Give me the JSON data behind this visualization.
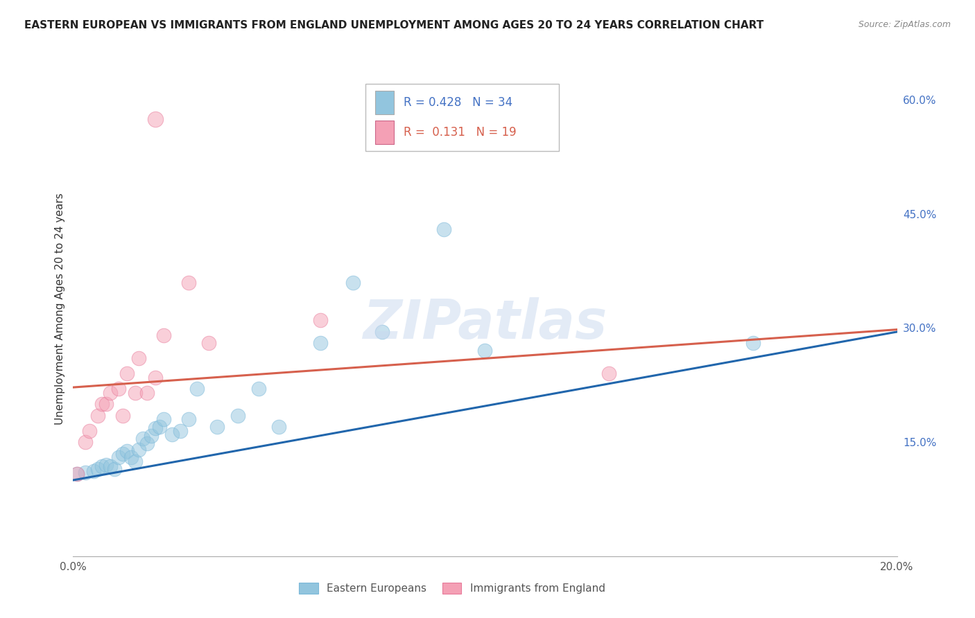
{
  "title": "EASTERN EUROPEAN VS IMMIGRANTS FROM ENGLAND UNEMPLOYMENT AMONG AGES 20 TO 24 YEARS CORRELATION CHART",
  "source": "Source: ZipAtlas.com",
  "ylabel": "Unemployment Among Ages 20 to 24 years",
  "xlim": [
    0.0,
    0.2
  ],
  "ylim": [
    0.0,
    0.65
  ],
  "xtick_positions": [
    0.0,
    0.04,
    0.08,
    0.12,
    0.16,
    0.2
  ],
  "xticklabels": [
    "0.0%",
    "",
    "",
    "",
    "",
    "20.0%"
  ],
  "yticks_right": [
    0.0,
    0.15,
    0.3,
    0.45,
    0.6
  ],
  "ytick_labels_right": [
    "",
    "15.0%",
    "30.0%",
    "45.0%",
    "60.0%"
  ],
  "blue_R": 0.428,
  "blue_N": 34,
  "pink_R": 0.131,
  "pink_N": 19,
  "blue_color": "#92c5de",
  "pink_color": "#f4a0b5",
  "blue_line_color": "#2166ac",
  "pink_line_color": "#d6604d",
  "blue_scatter_x": [
    0.001,
    0.003,
    0.005,
    0.006,
    0.007,
    0.008,
    0.009,
    0.01,
    0.011,
    0.012,
    0.013,
    0.014,
    0.015,
    0.016,
    0.017,
    0.018,
    0.019,
    0.02,
    0.021,
    0.022,
    0.024,
    0.026,
    0.028,
    0.03,
    0.035,
    0.04,
    0.045,
    0.05,
    0.06,
    0.068,
    0.075,
    0.09,
    0.1,
    0.165
  ],
  "blue_scatter_y": [
    0.108,
    0.11,
    0.112,
    0.115,
    0.118,
    0.12,
    0.118,
    0.115,
    0.13,
    0.135,
    0.138,
    0.13,
    0.125,
    0.14,
    0.155,
    0.148,
    0.158,
    0.168,
    0.17,
    0.18,
    0.16,
    0.165,
    0.18,
    0.22,
    0.17,
    0.185,
    0.22,
    0.17,
    0.28,
    0.36,
    0.295,
    0.43,
    0.27,
    0.28
  ],
  "pink_scatter_x": [
    0.001,
    0.003,
    0.004,
    0.006,
    0.007,
    0.008,
    0.009,
    0.011,
    0.012,
    0.013,
    0.015,
    0.016,
    0.018,
    0.02,
    0.022,
    0.028,
    0.033,
    0.06,
    0.13
  ],
  "pink_scatter_y": [
    0.108,
    0.15,
    0.165,
    0.185,
    0.2,
    0.2,
    0.215,
    0.22,
    0.185,
    0.24,
    0.215,
    0.26,
    0.215,
    0.235,
    0.29,
    0.36,
    0.28,
    0.31,
    0.24
  ],
  "pink_outlier_x": [
    0.02
  ],
  "pink_outlier_y": [
    0.575
  ],
  "blue_line_x0": 0.0,
  "blue_line_y0": 0.1,
  "blue_line_x1": 0.2,
  "blue_line_y1": 0.295,
  "pink_line_x0": 0.0,
  "pink_line_y0": 0.222,
  "pink_line_x1": 0.2,
  "pink_line_y1": 0.298,
  "watermark": "ZIPatlas",
  "background_color": "#ffffff",
  "grid_color": "#d0d0d0"
}
